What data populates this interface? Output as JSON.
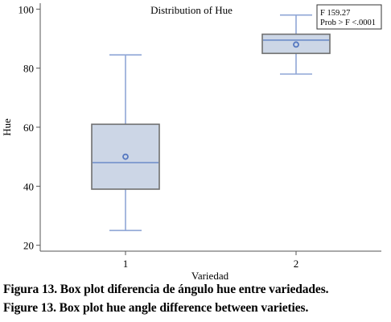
{
  "chart_data": {
    "type": "box",
    "title": "Distribution of Hue",
    "xlabel": "Variedad",
    "ylabel": "Hue",
    "categories": [
      "1",
      "2"
    ],
    "ylim": [
      18,
      102
    ],
    "yticks": [
      20,
      40,
      60,
      80,
      100
    ],
    "boxes": [
      {
        "category": "1",
        "min": 25,
        "q1": 39,
        "median": 48,
        "q3": 61,
        "max": 84.5,
        "mean": 50
      },
      {
        "category": "2",
        "min": 78,
        "q1": 85,
        "median": 89.5,
        "q3": 91.5,
        "max": 98,
        "mean": 88
      }
    ],
    "annotation": {
      "line1": "F 159.27",
      "line2": "Prob > F <.0001",
      "placement": "top-right"
    },
    "grid": false,
    "colors": {
      "box_fill": "#ccd6e6",
      "box_edge": "#6f6f6f",
      "whisker": "#8fa6d6",
      "median": "#6d8cc8",
      "mean_marker": "#5578c0",
      "axis": "#555555"
    }
  },
  "captions": {
    "spanish": "Figura 13. Box plot diferencia de ángulo hue entre variedades.",
    "english": "Figure 13. Box plot hue angle difference between varieties."
  }
}
